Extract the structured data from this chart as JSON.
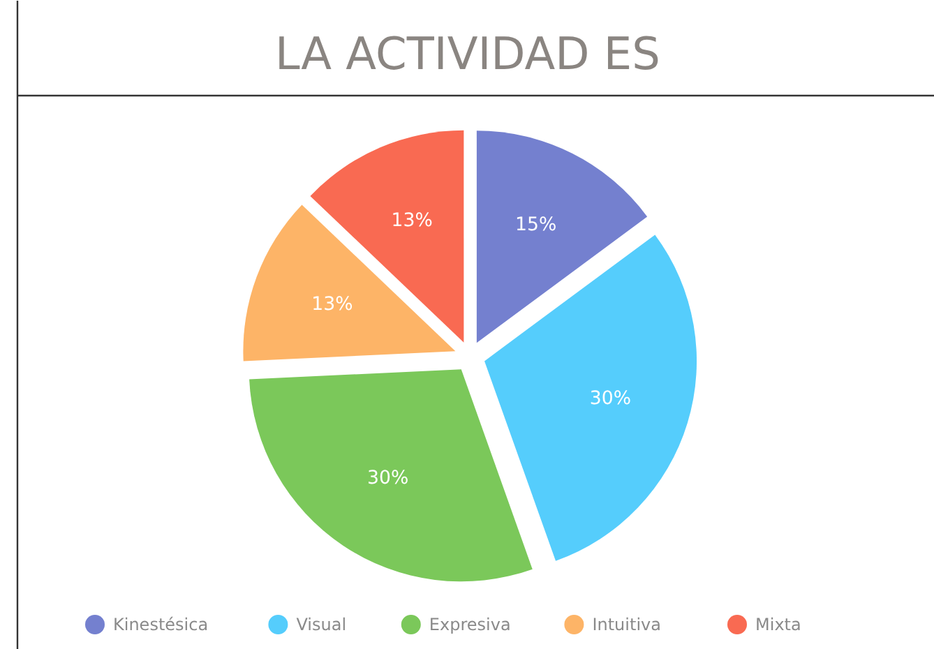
{
  "chart_data": {
    "type": "pie",
    "title": "LA ACTIVIDAD ES",
    "categories": [
      "Kinestésica",
      "Visual",
      "Expresiva",
      "Intuitiva",
      "Mixta"
    ],
    "values": [
      15,
      30,
      30,
      13,
      13
    ],
    "value_labels": [
      "15%",
      "30%",
      "30%",
      "13%",
      "13%"
    ],
    "colors": [
      "#7480cf",
      "#55cdfc",
      "#7bc85a",
      "#fdb467",
      "#f96a52"
    ],
    "legend": "bottom"
  }
}
